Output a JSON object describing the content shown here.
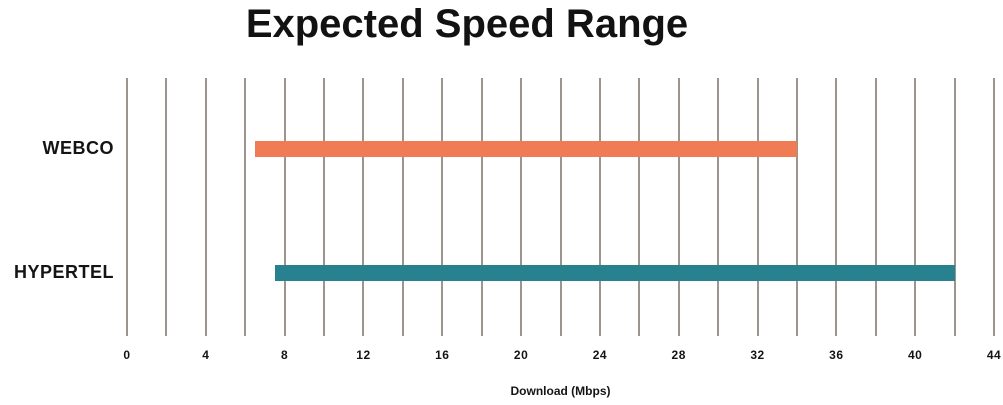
{
  "chart_data": {
    "type": "bar",
    "variant": "horizontal-range",
    "title": "Expected Speed Range",
    "xlabel": "Download (Mbps)",
    "xlim": [
      0,
      44
    ],
    "x_ticks": [
      0,
      4,
      8,
      12,
      16,
      20,
      24,
      28,
      32,
      36,
      40,
      44
    ],
    "gridline_step": 2,
    "grid": true,
    "legend": false,
    "rows": [
      {
        "label": "WEBCO",
        "min": 6.5,
        "max": 34,
        "color": "#F07C56"
      },
      {
        "label": "HYPERTEL",
        "min": 7.5,
        "max": 42,
        "color": "#27818F"
      }
    ],
    "colors": {
      "gridline": "#9b958d",
      "text": "#141414",
      "background": "#ffffff"
    }
  }
}
